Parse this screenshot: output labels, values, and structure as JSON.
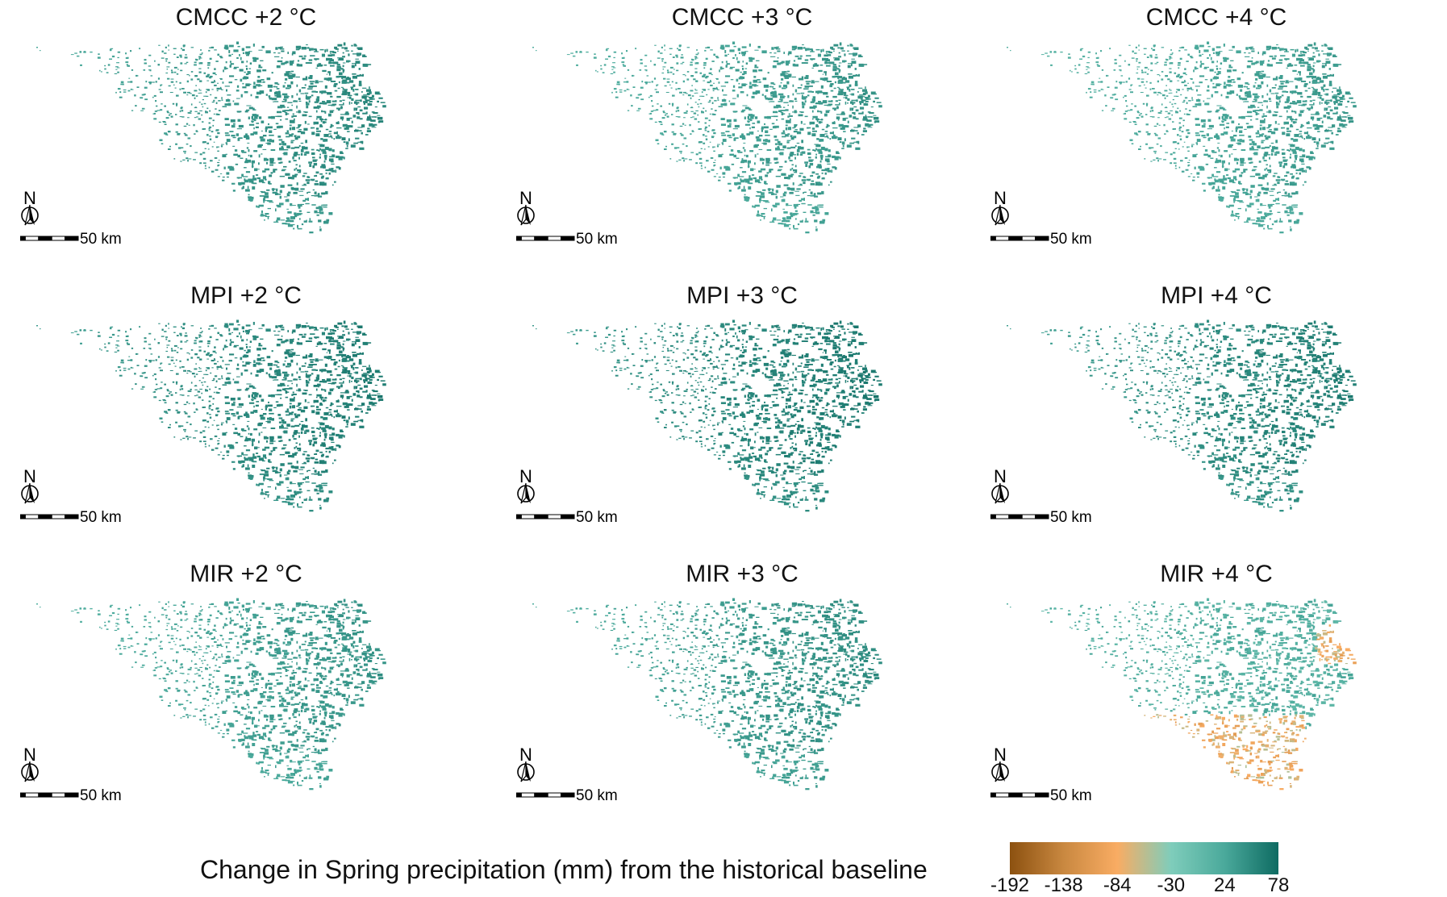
{
  "panels": [
    {
      "title": "CMCC +2 °C",
      "scale_label": "50 km",
      "north_label": "N",
      "mean_change": 40
    },
    {
      "title": "CMCC +3 °C",
      "scale_label": "50 km",
      "north_label": "N",
      "mean_change": 30
    },
    {
      "title": "CMCC +4 °C",
      "scale_label": "50 km",
      "north_label": "N",
      "mean_change": 25
    },
    {
      "title": "MPI +2 °C",
      "scale_label": "50 km",
      "north_label": "N",
      "mean_change": 50
    },
    {
      "title": "MPI +3 °C",
      "scale_label": "50 km",
      "north_label": "N",
      "mean_change": 52
    },
    {
      "title": "MPI +4 °C",
      "scale_label": "50 km",
      "north_label": "N",
      "mean_change": 48
    },
    {
      "title": "MIR +2 °C",
      "scale_label": "50 km",
      "north_label": "N",
      "mean_change": 30
    },
    {
      "title": "MIR +3 °C",
      "scale_label": "50 km",
      "north_label": "N",
      "mean_change": 35
    },
    {
      "title": "MIR +4 °C",
      "scale_label": "50 km",
      "north_label": "N",
      "mean_change": -20
    }
  ],
  "legend": {
    "title": "Change in Spring precipitation (mm) from the historical baseline",
    "ticks": [
      "-192",
      "-138",
      "-84",
      "-30",
      "24",
      "78"
    ],
    "min": -192,
    "max": 78,
    "colors": [
      "#8c5110",
      "#c98840",
      "#f9ac63",
      "#7fcdbb",
      "#4aa99b",
      "#0e6b62"
    ]
  }
}
